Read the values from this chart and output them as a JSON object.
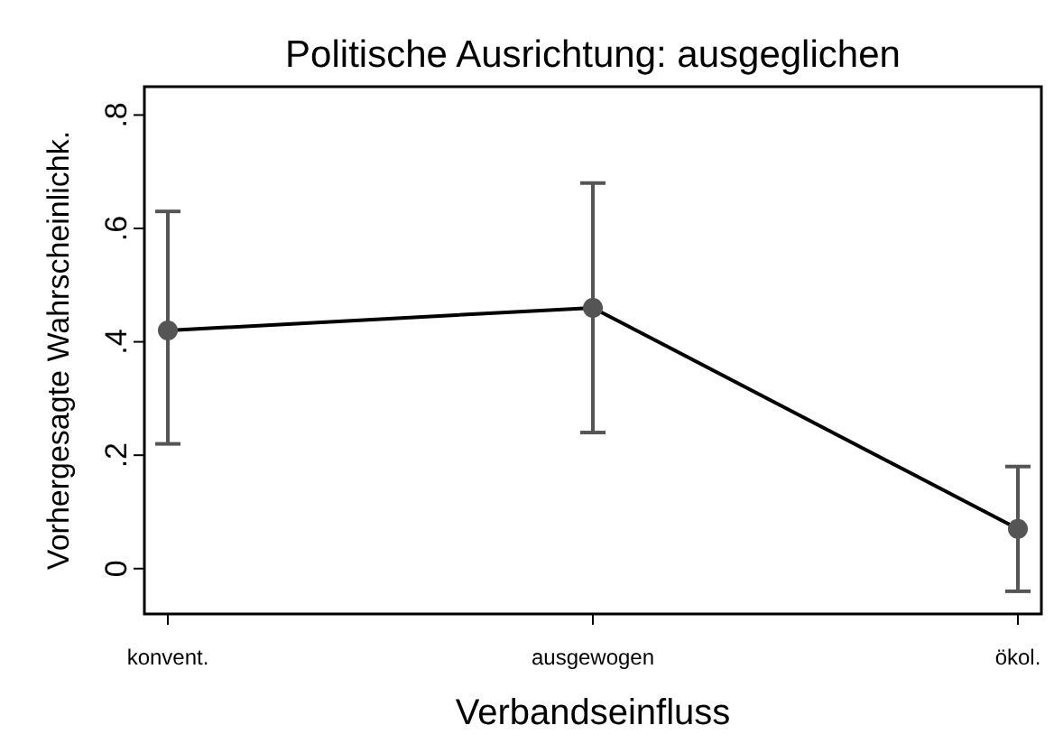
{
  "chart_data": {
    "type": "line",
    "title": "Politische Ausrichtung: ausgeglichen",
    "xlabel": "Verbandseinfluss",
    "ylabel": "Vorhergesagte Wahrscheinlichk.",
    "categories": [
      "konvent.",
      "ausgewogen",
      "ökol."
    ],
    "series": [
      {
        "color": "#000000",
        "values": [
          0.42,
          0.46,
          0.07
        ],
        "errors": [
          [
            0.22,
            0.63
          ],
          [
            0.24,
            0.68
          ],
          [
            -0.04,
            0.18
          ]
        ]
      }
    ],
    "ylim": [
      -0.08,
      0.85
    ],
    "yticks": [
      {
        "value": 0,
        "label": "0"
      },
      {
        "value": 0.2,
        "label": ".2"
      },
      {
        "value": 0.4,
        "label": ".4"
      },
      {
        "value": 0.6,
        "label": ".6"
      },
      {
        "value": 0.8,
        "label": ".8"
      }
    ],
    "grid": false,
    "marker": "circle",
    "line_style": "solid"
  }
}
